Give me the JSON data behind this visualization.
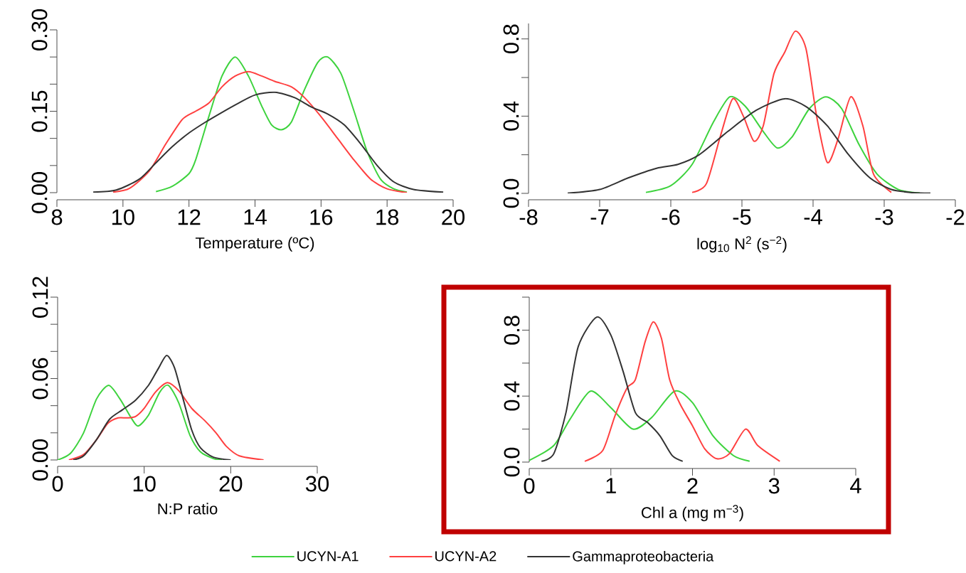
{
  "chart_data": [
    {
      "type": "line",
      "xlabel": "Temperature (ºC)",
      "xlim": [
        8,
        20
      ],
      "ylim": [
        0,
        0.3
      ],
      "xticks": [
        8,
        10,
        12,
        14,
        16,
        18,
        20
      ],
      "yticks": [
        {
          "value": 0,
          "label": "0.00"
        },
        {
          "value": 0.05,
          "label": null
        },
        {
          "value": 0.1,
          "label": null
        },
        {
          "value": 0.15,
          "label": "0.15"
        },
        {
          "value": 0.2,
          "label": null
        },
        {
          "value": 0.25,
          "label": null
        },
        {
          "value": 0.3,
          "label": "0.30"
        }
      ],
      "legend": "bottom",
      "series": [
        {
          "name": "UCYN-A1",
          "color": "#3ed33e",
          "x": [
            11.0,
            11.5,
            12.0,
            12.2,
            12.6,
            13.0,
            13.4,
            13.8,
            14.2,
            14.5,
            14.8,
            15.1,
            15.5,
            15.9,
            16.2,
            16.6,
            17.0,
            17.4,
            17.8,
            18.2,
            18.6
          ],
          "values": [
            0.002,
            0.012,
            0.035,
            0.06,
            0.14,
            0.215,
            0.25,
            0.215,
            0.16,
            0.125,
            0.116,
            0.13,
            0.19,
            0.24,
            0.25,
            0.22,
            0.15,
            0.075,
            0.025,
            0.007,
            0.001
          ]
        },
        {
          "name": "UCYN-A2",
          "color": "#ff4040",
          "x": [
            9.7,
            10.2,
            10.8,
            11.3,
            11.8,
            12.2,
            12.6,
            13.0,
            13.4,
            13.8,
            14.2,
            14.6,
            15.1,
            15.5,
            16.0,
            16.5,
            17.0,
            17.5,
            18.0,
            18.6
          ],
          "values": [
            0.001,
            0.008,
            0.04,
            0.09,
            0.135,
            0.15,
            0.165,
            0.195,
            0.215,
            0.223,
            0.215,
            0.205,
            0.195,
            0.175,
            0.14,
            0.1,
            0.06,
            0.025,
            0.007,
            0.0
          ]
        },
        {
          "name": "Gammaproteobacteria",
          "color": "#333333",
          "x": [
            9.1,
            9.8,
            10.5,
            11.0,
            11.5,
            12.0,
            12.5,
            13.0,
            13.5,
            14.0,
            14.6,
            15.2,
            15.7,
            16.2,
            16.7,
            17.2,
            17.7,
            18.2,
            18.8,
            19.7
          ],
          "values": [
            0.001,
            0.005,
            0.025,
            0.055,
            0.085,
            0.11,
            0.13,
            0.148,
            0.165,
            0.18,
            0.185,
            0.175,
            0.158,
            0.145,
            0.125,
            0.09,
            0.05,
            0.02,
            0.006,
            0.001
          ]
        }
      ]
    },
    {
      "type": "line",
      "xlabel": "log$_{10}$ N$^{2}$ (s$^{−2}$)",
      "xlim": [
        -8,
        -2
      ],
      "ylim": [
        0,
        0.88
      ],
      "xticks": [
        -8,
        -7,
        -6,
        -5,
        -4,
        -3,
        -2
      ],
      "yticks": [
        {
          "value": 0,
          "label": "0.0"
        },
        {
          "value": 0.2,
          "label": null
        },
        {
          "value": 0.4,
          "label": "0.4"
        },
        {
          "value": 0.6,
          "label": null
        },
        {
          "value": 0.8,
          "label": "0.8"
        }
      ],
      "series": [
        {
          "color": "#3ed33e",
          "x": [
            -6.35,
            -6.0,
            -5.7,
            -5.4,
            -5.17,
            -4.95,
            -4.7,
            -4.5,
            -4.3,
            -4.05,
            -3.82,
            -3.6,
            -3.35,
            -3.1,
            -2.8,
            -2.5
          ],
          "values": [
            0.005,
            0.04,
            0.15,
            0.37,
            0.5,
            0.45,
            0.32,
            0.235,
            0.29,
            0.44,
            0.5,
            0.44,
            0.25,
            0.1,
            0.02,
            0.002
          ]
        },
        {
          "color": "#ff4040",
          "x": [
            -5.7,
            -5.5,
            -5.3,
            -5.13,
            -4.98,
            -4.83,
            -4.7,
            -4.55,
            -4.4,
            -4.25,
            -4.1,
            -3.95,
            -3.8,
            -3.65,
            -3.47,
            -3.3,
            -3.15,
            -2.9
          ],
          "values": [
            0.005,
            0.05,
            0.3,
            0.49,
            0.4,
            0.27,
            0.35,
            0.62,
            0.73,
            0.84,
            0.75,
            0.4,
            0.16,
            0.28,
            0.5,
            0.35,
            0.1,
            0.005
          ]
        },
        {
          "color": "#333333",
          "x": [
            -7.45,
            -7.0,
            -6.6,
            -6.2,
            -5.9,
            -5.6,
            -5.2,
            -4.8,
            -4.4,
            -4.1,
            -3.8,
            -3.5,
            -3.2,
            -2.9,
            -2.6,
            -2.35
          ],
          "values": [
            0.001,
            0.02,
            0.08,
            0.13,
            0.15,
            0.2,
            0.32,
            0.43,
            0.49,
            0.45,
            0.35,
            0.2,
            0.08,
            0.02,
            0.004,
            0.001
          ]
        }
      ]
    },
    {
      "type": "line",
      "xlabel": "N:P ratio",
      "xlim": [
        0,
        30
      ],
      "ylim": [
        0,
        0.12
      ],
      "xticks": [
        0,
        10,
        20,
        30
      ],
      "yticks": [
        {
          "value": 0,
          "label": "0.00"
        },
        {
          "value": 0.02,
          "label": null
        },
        {
          "value": 0.04,
          "label": null
        },
        {
          "value": 0.06,
          "label": "0.06"
        },
        {
          "value": 0.08,
          "label": null
        },
        {
          "value": 0.1,
          "label": null
        },
        {
          "value": 0.12,
          "label": "0.12"
        }
      ],
      "series": [
        {
          "color": "#3ed33e",
          "x": [
            0,
            1.5,
            3,
            4.5,
            5.9,
            7.2,
            8.5,
            9.3,
            10.5,
            11.8,
            12.8,
            14,
            15.3,
            16.5,
            18,
            19
          ],
          "values": [
            0.0,
            0.005,
            0.02,
            0.045,
            0.055,
            0.045,
            0.031,
            0.025,
            0.033,
            0.05,
            0.055,
            0.042,
            0.018,
            0.006,
            0.001,
            0.0
          ]
        },
        {
          "color": "#ff4040",
          "x": [
            1.3,
            3,
            4.5,
            5.8,
            7,
            8,
            9,
            10,
            11.3,
            12.7,
            14,
            15.5,
            17,
            18.3,
            19.5,
            21,
            23.8
          ],
          "values": [
            0.0,
            0.004,
            0.015,
            0.027,
            0.031,
            0.031,
            0.032,
            0.038,
            0.05,
            0.057,
            0.051,
            0.038,
            0.029,
            0.02,
            0.01,
            0.003,
            0.0
          ]
        },
        {
          "color": "#333333",
          "x": [
            1.8,
            3,
            4.5,
            6.0,
            7.5,
            9,
            10.5,
            11.6,
            12.6,
            13.5,
            14.5,
            15.5,
            16.5,
            18,
            20
          ],
          "values": [
            0.0,
            0.003,
            0.015,
            0.03,
            0.037,
            0.044,
            0.055,
            0.067,
            0.077,
            0.068,
            0.045,
            0.022,
            0.009,
            0.002,
            0.0
          ]
        }
      ]
    },
    {
      "type": "line",
      "xlabel": "Chl a (mg m$^{−3}$)",
      "xlim": [
        0,
        4
      ],
      "ylim": [
        0,
        1.0
      ],
      "xticks": [
        0,
        1,
        2,
        3,
        4
      ],
      "yticks": [
        {
          "value": 0,
          "label": "0.0"
        },
        {
          "value": 0.2,
          "label": null
        },
        {
          "value": 0.4,
          "label": "0.4"
        },
        {
          "value": 0.6,
          "label": null
        },
        {
          "value": 0.8,
          "label": "0.8"
        },
        {
          "value": 1.0,
          "label": null
        }
      ],
      "series": [
        {
          "color": "#3ed33e",
          "x": [
            0,
            0.3,
            0.5,
            0.75,
            1.0,
            1.27,
            1.5,
            1.78,
            2.0,
            2.25,
            2.5,
            2.7
          ],
          "values": [
            0.01,
            0.1,
            0.26,
            0.43,
            0.33,
            0.2,
            0.27,
            0.43,
            0.36,
            0.16,
            0.04,
            0.005
          ]
        },
        {
          "color": "#ff4040",
          "x": [
            0.68,
            0.9,
            1.05,
            1.2,
            1.3,
            1.42,
            1.52,
            1.62,
            1.72,
            1.85,
            2.0,
            2.15,
            2.3,
            2.45,
            2.65,
            2.8,
            3.07
          ],
          "values": [
            0.005,
            0.07,
            0.28,
            0.45,
            0.5,
            0.73,
            0.85,
            0.75,
            0.5,
            0.35,
            0.22,
            0.08,
            0.02,
            0.05,
            0.2,
            0.1,
            0.005
          ]
        },
        {
          "color": "#333333",
          "x": [
            0.15,
            0.3,
            0.45,
            0.6,
            0.83,
            1.0,
            1.15,
            1.3,
            1.45,
            1.6,
            1.75,
            1.88
          ],
          "values": [
            0.005,
            0.05,
            0.3,
            0.7,
            0.88,
            0.77,
            0.55,
            0.3,
            0.24,
            0.16,
            0.04,
            0.005
          ]
        }
      ]
    }
  ]
}
